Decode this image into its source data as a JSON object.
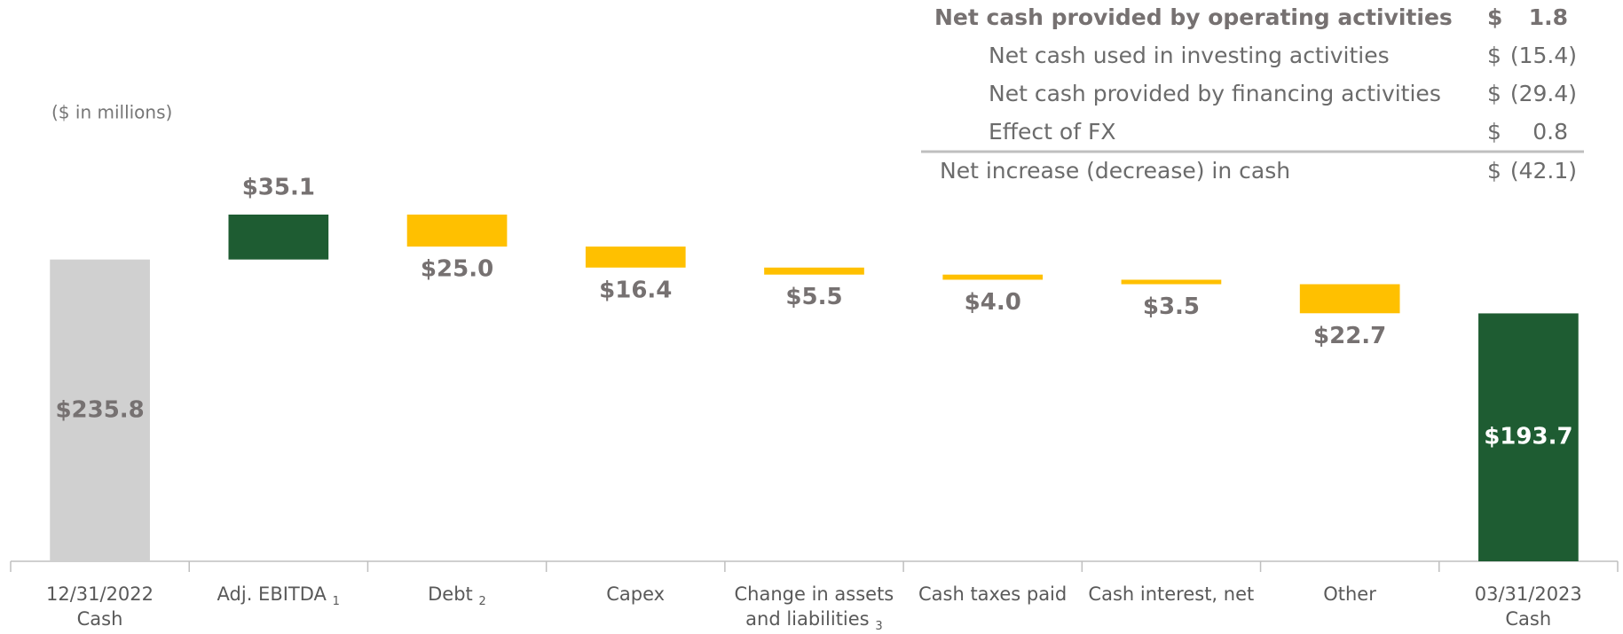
{
  "chart_data": {
    "type": "waterfall",
    "unit_note": "($ in millions)",
    "categories": [
      "12/31/2022\nCash",
      "Adj. EBITDA",
      "Debt",
      "Capex",
      "Change in assets\nand liabilities",
      "Cash taxes paid",
      "Cash interest, net",
      "Other",
      "03/31/2023\nCash"
    ],
    "category_notes": [
      null,
      "1",
      "2",
      null,
      "3",
      null,
      null,
      null,
      null
    ],
    "values": [
      235.8,
      35.1,
      -25.0,
      -16.4,
      -5.5,
      -4.0,
      -3.5,
      -22.7,
      193.7
    ],
    "value_labels": [
      "$235.8",
      "$35.1",
      "$25.0",
      "$16.4",
      "$5.5",
      "$4.0",
      "$3.5",
      "$22.7",
      "$193.7"
    ],
    "is_total": [
      true,
      false,
      false,
      false,
      false,
      false,
      false,
      false,
      true
    ],
    "bar_colors": [
      "#d0d0d0",
      "#1e5c32",
      "#ffc000",
      "#ffc000",
      "#ffc000",
      "#ffc000",
      "#ffc000",
      "#ffc000",
      "#1e5c32"
    ],
    "ylim": [
      0,
      300
    ]
  },
  "summary": {
    "rows": [
      {
        "label": "Net cash provided by operating activities",
        "currency": "$",
        "amount": "1.8"
      },
      {
        "label": "Net cash used in investing activities",
        "currency": "$",
        "amount": "(15.4)"
      },
      {
        "label": "Net cash provided by financing activities",
        "currency": "$",
        "amount": "(29.4)"
      },
      {
        "label": "Effect of FX",
        "currency": "$",
        "amount": "0.8"
      },
      {
        "label": "Net increase (decrease) in cash",
        "currency": "$",
        "amount": "(42.1)"
      }
    ]
  }
}
